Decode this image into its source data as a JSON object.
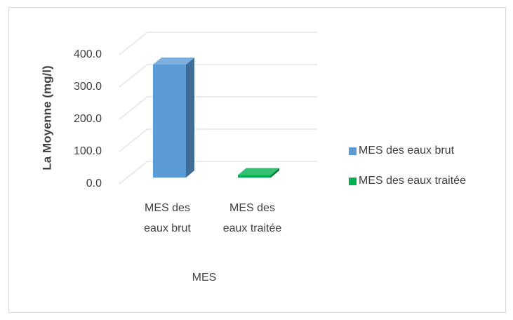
{
  "chart_data": {
    "type": "bar3d",
    "categories": [
      "MES des eaux brut",
      "MES des eaux traitée"
    ],
    "series": [
      {
        "name": "MES des eaux brut",
        "color": "#5b9bd5",
        "values": [
          350,
          null
        ]
      },
      {
        "name": "MES des eaux traitée",
        "color": "#00b050",
        "values": [
          null,
          8
        ]
      }
    ],
    "x_label": "MES",
    "y_label": "La Moyenne (mg/l)",
    "ylim": [
      0,
      400
    ],
    "yticks": [
      {
        "value": 0,
        "label": "0.0"
      },
      {
        "value": 100,
        "label": "100.0"
      },
      {
        "value": 200,
        "label": "200.0"
      },
      {
        "value": 300,
        "label": "300.0"
      },
      {
        "value": 400,
        "label": "400.0"
      }
    ],
    "grid": true,
    "legend": "right"
  }
}
